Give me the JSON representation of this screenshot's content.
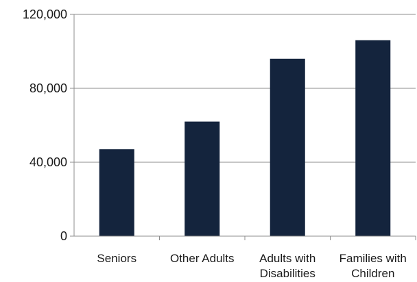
{
  "chart_data": {
    "type": "bar",
    "categories": [
      "Seniors",
      "Other Adults",
      "Adults with Disabilities",
      "Families with Children"
    ],
    "category_lines": [
      [
        "Seniors"
      ],
      [
        "Other Adults"
      ],
      [
        "Adults with",
        "Disabilities"
      ],
      [
        "Families with",
        "Children"
      ]
    ],
    "values": [
      47000,
      62000,
      96000,
      106000
    ],
    "title": "",
    "xlabel": "",
    "ylabel": "",
    "ylim": [
      0,
      120000
    ],
    "yticks": [
      0,
      40000,
      80000,
      120000
    ],
    "ytick_labels": [
      "0",
      "40,000",
      "80,000",
      "120,000"
    ],
    "grid": true,
    "legend": "none",
    "bar_color": "#14243d",
    "grid_color": "#8c8c8c"
  }
}
